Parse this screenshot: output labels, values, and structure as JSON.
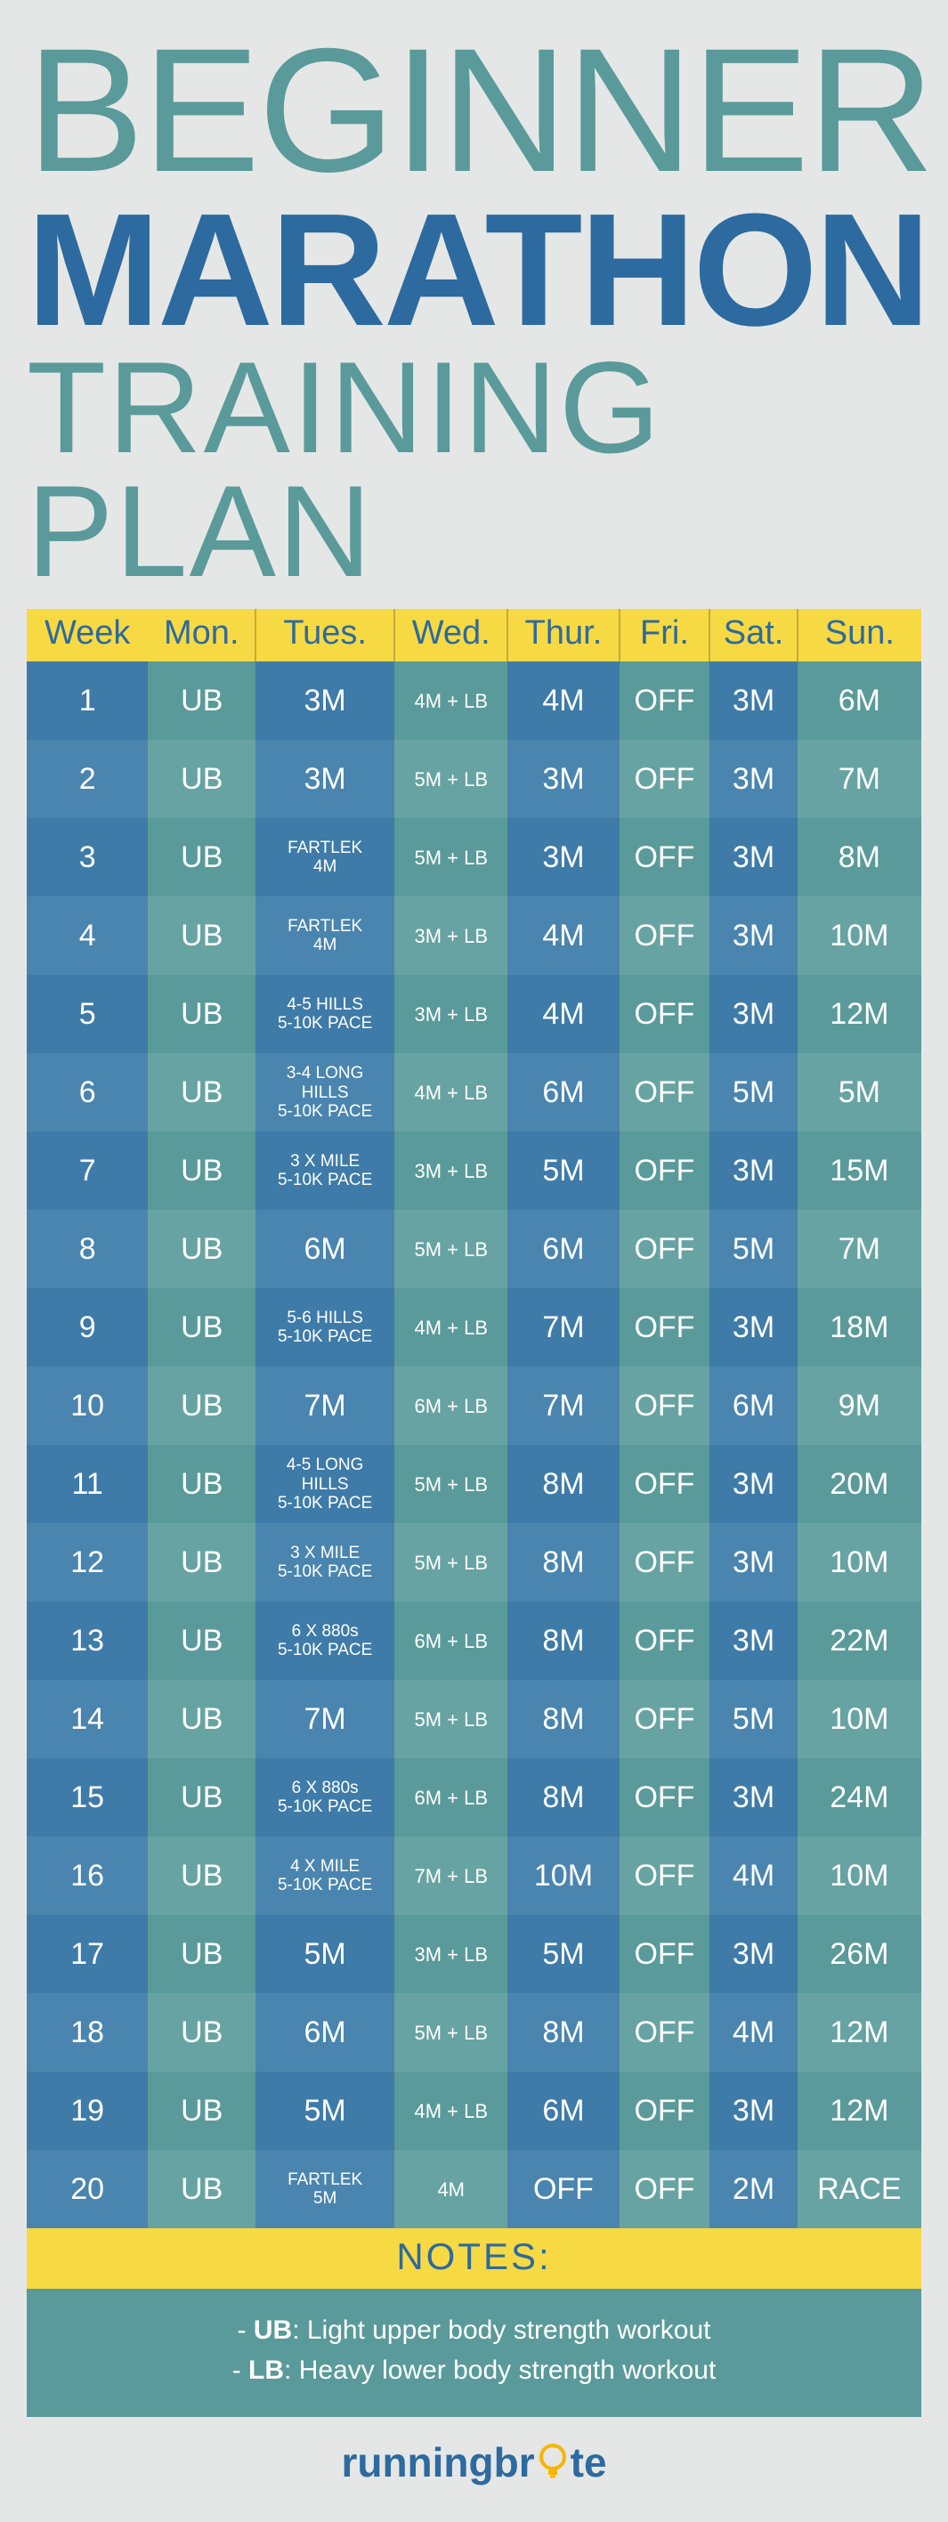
{
  "title": {
    "line1": "BEGINNER",
    "line2": "MARATHON",
    "line3": "TRAINING PLAN"
  },
  "colors": {
    "page_bg": "#e5e7e6",
    "teal": "#5a9a9a",
    "teal_light": "#68a3a3",
    "blue": "#2d6a9f",
    "blue_light": "#4a85af",
    "blue_cell": "#3e7ba8",
    "yellow": "#f7d943",
    "yellow_accent": "#f7b500",
    "text_white": "#ffffff"
  },
  "table": {
    "columns": [
      "Week",
      "Mon.",
      "Tues.",
      "Wed.",
      "Thur.",
      "Fri.",
      "Sat.",
      "Sun."
    ],
    "rows": [
      [
        "1",
        "UB",
        "3M",
        "4M + LB",
        "4M",
        "OFF",
        "3M",
        "6M"
      ],
      [
        "2",
        "UB",
        "3M",
        "5M + LB",
        "3M",
        "OFF",
        "3M",
        "7M"
      ],
      [
        "3",
        "UB",
        "FARTLEK\n4M",
        "5M + LB",
        "3M",
        "OFF",
        "3M",
        "8M"
      ],
      [
        "4",
        "UB",
        "FARTLEK\n4M",
        "3M + LB",
        "4M",
        "OFF",
        "3M",
        "10M"
      ],
      [
        "5",
        "UB",
        "4-5 HILLS\n5-10K PACE",
        "3M + LB",
        "4M",
        "OFF",
        "3M",
        "12M"
      ],
      [
        "6",
        "UB",
        "3-4 LONG\nHILLS\n5-10K PACE",
        "4M + LB",
        "6M",
        "OFF",
        "5M",
        "5M"
      ],
      [
        "7",
        "UB",
        "3 X MILE\n5-10K PACE",
        "3M + LB",
        "5M",
        "OFF",
        "3M",
        "15M"
      ],
      [
        "8",
        "UB",
        "6M",
        "5M + LB",
        "6M",
        "OFF",
        "5M",
        "7M"
      ],
      [
        "9",
        "UB",
        "5-6 HILLS\n5-10K PACE",
        "4M + LB",
        "7M",
        "OFF",
        "3M",
        "18M"
      ],
      [
        "10",
        "UB",
        "7M",
        "6M + LB",
        "7M",
        "OFF",
        "6M",
        "9M"
      ],
      [
        "11",
        "UB",
        "4-5 LONG\nHILLS\n5-10K PACE",
        "5M + LB",
        "8M",
        "OFF",
        "3M",
        "20M"
      ],
      [
        "12",
        "UB",
        "3 X MILE\n5-10K PACE",
        "5M + LB",
        "8M",
        "OFF",
        "3M",
        "10M"
      ],
      [
        "13",
        "UB",
        "6 X 880s\n5-10K PACE",
        "6M + LB",
        "8M",
        "OFF",
        "3M",
        "22M"
      ],
      [
        "14",
        "UB",
        "7M",
        "5M + LB",
        "8M",
        "OFF",
        "5M",
        "10M"
      ],
      [
        "15",
        "UB",
        "6 X 880s\n5-10K PACE",
        "6M + LB",
        "8M",
        "OFF",
        "3M",
        "24M"
      ],
      [
        "16",
        "UB",
        "4 X MILE\n5-10K PACE",
        "7M + LB",
        "10M",
        "OFF",
        "4M",
        "10M"
      ],
      [
        "17",
        "UB",
        "5M",
        "3M + LB",
        "5M",
        "OFF",
        "3M",
        "26M"
      ],
      [
        "18",
        "UB",
        "6M",
        "5M + LB",
        "8M",
        "OFF",
        "4M",
        "12M"
      ],
      [
        "19",
        "UB",
        "5M",
        "4M + LB",
        "6M",
        "OFF",
        "3M",
        "12M"
      ],
      [
        "20",
        "UB",
        "FARTLEK\n5M",
        "4M",
        "OFF",
        "OFF",
        "2M",
        "RACE"
      ]
    ],
    "tues_small_rows": [
      2,
      3,
      4,
      5,
      6,
      8,
      10,
      11,
      12,
      14,
      15,
      19
    ],
    "wed_small": true
  },
  "notes": {
    "header": "NOTES:",
    "items": [
      {
        "key": "UB",
        "text": ": Light upper body strength workout"
      },
      {
        "key": "LB",
        "text": ": Heavy lower body strength workout"
      }
    ]
  },
  "logo": {
    "part1": "running",
    "part2": "br",
    "part3": "te"
  }
}
